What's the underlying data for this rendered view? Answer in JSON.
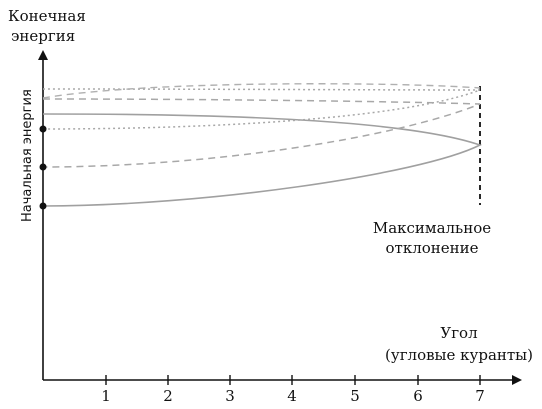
{
  "diagram": {
    "y_axis_title_line1": "Конечная",
    "y_axis_title_line2": "энергия",
    "initial_energy_label": "Начальная энергия",
    "max_deflection_line1": "Максимальное",
    "max_deflection_line2": "отклонение",
    "x_axis_title_line1": "Угол",
    "x_axis_title_line2": "(угловые куранты)",
    "x_ticks": [
      "1",
      "2",
      "3",
      "4",
      "5",
      "6",
      "7"
    ]
  }
}
